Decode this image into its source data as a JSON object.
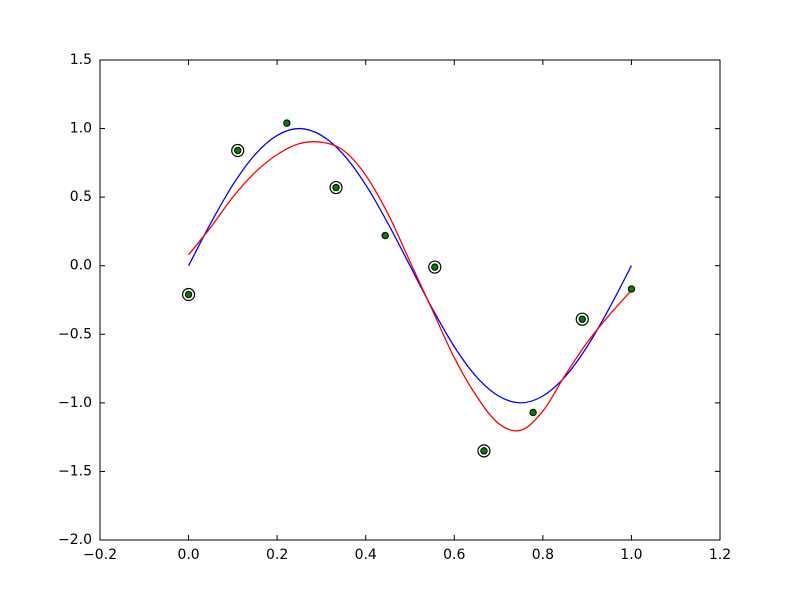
{
  "chart_data": {
    "type": "line",
    "xlim": [
      -0.2,
      1.2
    ],
    "ylim": [
      -2.0,
      1.5
    ],
    "xticks": [
      {
        "value": -0.2,
        "label": "−0.2"
      },
      {
        "value": 0,
        "label": "0.0"
      },
      0.2,
      0.4,
      0.6,
      0.8,
      {
        "value": 1,
        "label": "1.0"
      },
      1.2
    ],
    "yticks": [
      {
        "value": -2,
        "label": "−2.0"
      },
      {
        "value": -1.5,
        "label": "−1.5"
      },
      {
        "value": -1,
        "label": "−1.0"
      },
      {
        "value": -0.5,
        "label": "−0.5"
      },
      {
        "value": 0,
        "label": "0.0"
      },
      0.5,
      {
        "value": 1,
        "label": "1.0"
      },
      1.5
    ],
    "series": [
      {
        "type": "line",
        "color": "#0000ff",
        "x": [
          0,
          0.05,
          0.1,
          0.15,
          0.2,
          0.25,
          0.3,
          0.35,
          0.4,
          0.45,
          0.5,
          0.55,
          0.6,
          0.65,
          0.7,
          0.75,
          0.8,
          0.85,
          0.9,
          0.95,
          1
        ],
        "values": [
          0,
          0.31,
          0.59,
          0.81,
          0.95,
          1,
          0.95,
          0.81,
          0.59,
          0.31,
          0,
          -0.31,
          -0.59,
          -0.81,
          -0.95,
          -1,
          -0.95,
          -0.81,
          -0.59,
          -0.31,
          0
        ]
      },
      {
        "type": "line",
        "color": "#ff0000",
        "x": [
          0,
          0.05,
          0.1,
          0.15,
          0.2,
          0.25,
          0.3,
          0.35,
          0.4,
          0.45,
          0.5,
          0.55,
          0.6,
          0.65,
          0.7,
          0.75,
          0.8,
          0.85,
          0.9,
          0.95,
          1
        ],
        "values": [
          0.08,
          0.28,
          0.5,
          0.68,
          0.81,
          0.89,
          0.9,
          0.84,
          0.66,
          0.38,
          0.03,
          -0.32,
          -0.67,
          -0.95,
          -1.15,
          -1.2,
          -1.06,
          -0.8,
          -0.56,
          -0.36,
          -0.18
        ]
      },
      {
        "type": "scatter",
        "color": "#008000",
        "ring": [
          true,
          true,
          false,
          true,
          false,
          true,
          true,
          false,
          true,
          false
        ],
        "x": [
          0,
          0.111,
          0.222,
          0.333,
          0.444,
          0.556,
          0.667,
          0.778,
          0.889,
          1
        ],
        "values": [
          -0.21,
          0.84,
          1.04,
          0.57,
          0.22,
          -0.01,
          -1.35,
          -1.07,
          -0.39,
          -0.17
        ]
      }
    ]
  }
}
